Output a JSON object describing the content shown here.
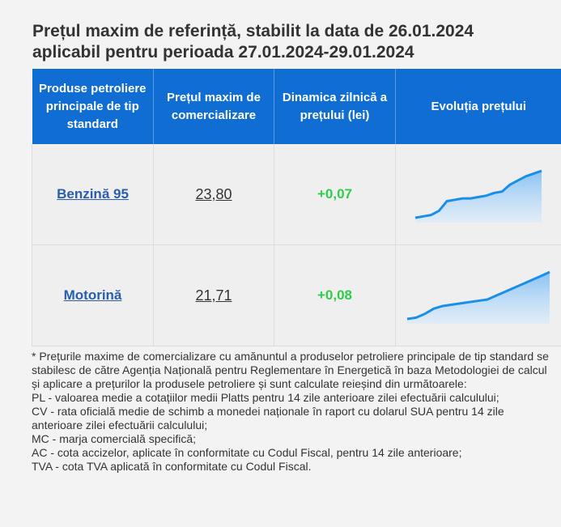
{
  "header": {
    "title_line1": "Prețul maxim de referință, stabilit la data de 26.01.2024",
    "title_line2": "aplicabil pentru perioada 27.01.2024-29.01.2024"
  },
  "table": {
    "columns": [
      "Produse petroliere principale de tip standard",
      "Prețul maxim de comercializare",
      "Dinamica zilnică a prețului (lei)",
      "Evoluția prețului"
    ],
    "rows": [
      {
        "product": "Benzină 95",
        "price": "23,80",
        "delta": "+0,07",
        "trend": [
          22.1,
          22.15,
          22.2,
          22.35,
          22.7,
          22.75,
          22.8,
          22.8,
          22.85,
          22.9,
          23.0,
          23.05,
          23.3,
          23.45,
          23.6,
          23.7,
          23.8
        ]
      },
      {
        "product": "Motorină",
        "price": "21,71",
        "delta": "+0,08",
        "trend": [
          19.9,
          19.95,
          20.1,
          20.3,
          20.4,
          20.45,
          20.5,
          20.55,
          20.6,
          20.65,
          20.8,
          20.95,
          21.1,
          21.25,
          21.4,
          21.55,
          21.71
        ]
      }
    ]
  },
  "notes": [
    "* Prețurile maxime de comercializare cu amănuntul a produselor petroliere principale de tip standard se stabilesc de către Agenția Națională pentru Reglementare în Energetică în baza Metodologiei de calcul și aplicare a prețurilor la produsele petroliere și sunt calculate reieșind din următoarele:",
    "PL - valoarea medie a cotațiilor medii Platts pentru 14 zile anterioare zilei efectuării calculului;",
    "CV - rata oficială medie de schimb a monedei naționale în raport cu dolarul SUA pentru 14 zile anterioare zilei efectuării calculului;",
    "MC - marja comercială specifică;",
    "AC - cota accizelor, aplicate în conformitate cu Codul Fiscal, pentru 14 zile anterioare;",
    "TVA - cota TVA aplicată în conformitate cu Codul Fiscal."
  ],
  "colors": {
    "header_bg": "#0f6dd3",
    "link": "#2a5db0",
    "delta_positive": "#2ecc48",
    "spark_line": "#1a8fe8"
  }
}
